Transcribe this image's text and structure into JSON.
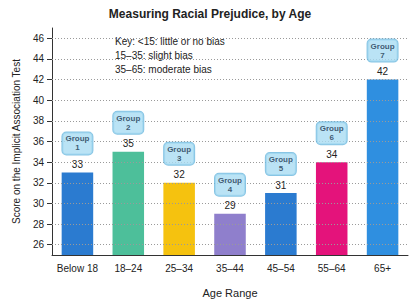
{
  "chart_data": {
    "type": "bar",
    "title": "Measuring Racial Prejudice, by Age",
    "x_label": "Age Range",
    "y_label": "Score on the Implicit Association Test",
    "categories": [
      "Below 18",
      "18–24",
      "25–34",
      "35–44",
      "45–54",
      "55–64",
      "65+"
    ],
    "values": [
      33,
      35,
      32,
      29,
      31,
      34,
      42
    ],
    "colors": [
      "#2b7bd0",
      "#4dbf9a",
      "#f5c20f",
      "#8f7fcc",
      "#2b7bd0",
      "#e4137b",
      "#2f8fe0"
    ],
    "ylim": [
      25,
      47
    ],
    "yticks": [
      26,
      28,
      30,
      32,
      34,
      36,
      38,
      40,
      42,
      44,
      46
    ],
    "grid": true,
    "data_labels": true,
    "annotations": {
      "key": [
        "Key: <15: little or no bias",
        "15–35: slight bias",
        "35–65: moderate bias"
      ],
      "bar_labels": [
        "Group 1",
        "Group 2",
        "Group 3",
        "Group 4",
        "Group 5",
        "Group 6",
        "Group 7"
      ]
    }
  }
}
